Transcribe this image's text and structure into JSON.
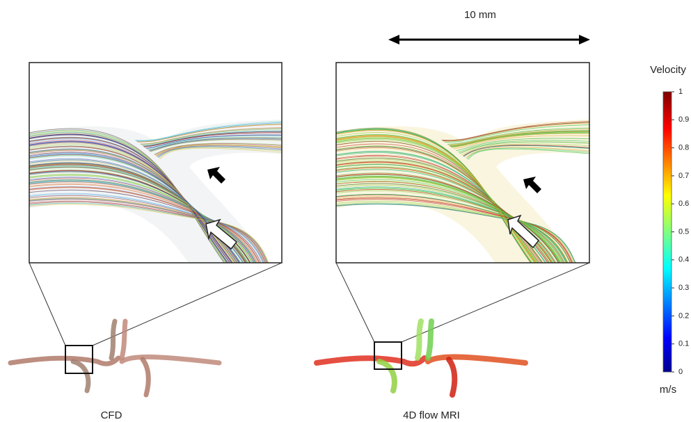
{
  "scale_bar": {
    "label": "10 mm"
  },
  "panels": [
    {
      "label": "CFD"
    },
    {
      "label": "4D flow MRI"
    }
  ],
  "colorbar": {
    "title": "Velocity",
    "unit": "m/s",
    "ticks": [
      0,
      0.1,
      0.2,
      0.3,
      0.4,
      0.5,
      0.6,
      0.7,
      0.8,
      0.9,
      1
    ]
  }
}
